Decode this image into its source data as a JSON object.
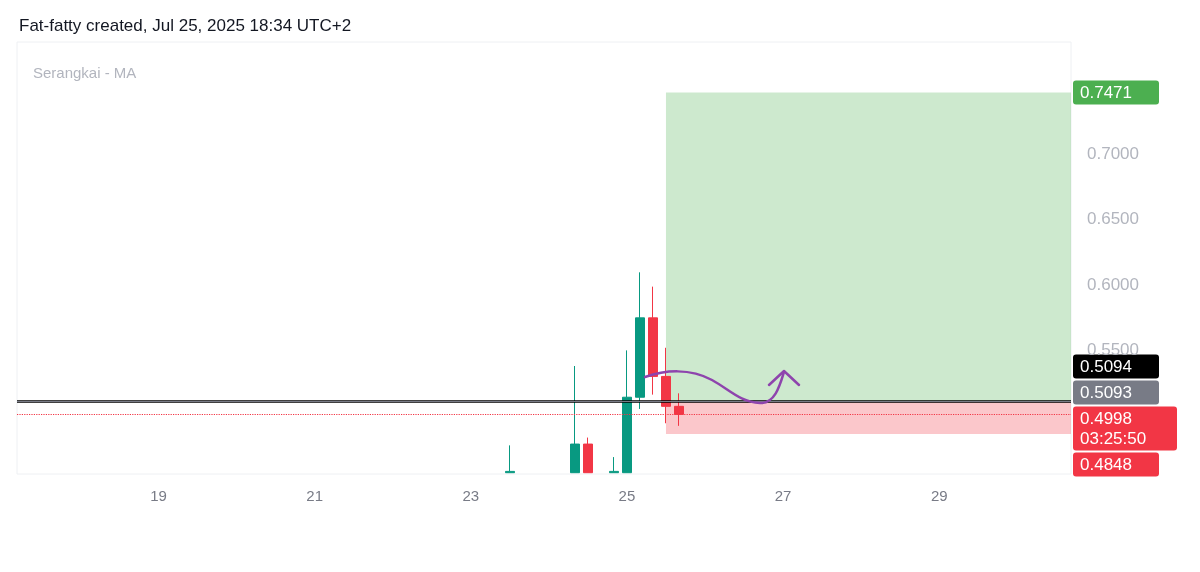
{
  "chart_data": {
    "type": "candlestick",
    "title": "Fat-fatty created, Jul 25, 2025 18:34 UTC+2",
    "subtitle": "Serangkai - MA",
    "x": [
      "2025-07-23T12:00",
      "2025-07-24T08:00",
      "2025-07-24T12:00",
      "2025-07-24T20:00",
      "2025-07-25T00:00",
      "2025-07-25T04:00",
      "2025-07-25T08:00",
      "2025-07-25T12:00",
      "2025-07-25T16:00"
    ],
    "ohlc": [
      [
        0.455,
        0.476,
        0.455,
        0.456
      ],
      [
        0.455,
        0.537,
        0.455,
        0.477
      ],
      [
        0.477,
        0.482,
        0.455,
        0.455
      ],
      [
        0.455,
        0.467,
        0.455,
        0.456
      ],
      [
        0.455,
        0.549,
        0.455,
        0.513
      ],
      [
        0.513,
        0.609,
        0.504,
        0.574
      ],
      [
        0.574,
        0.598,
        0.515,
        0.529
      ],
      [
        0.529,
        0.551,
        0.493,
        0.506
      ],
      [
        0.506,
        0.516,
        0.491,
        0.4998
      ]
    ],
    "colors": [
      "#089981",
      "#089981",
      "#f23645",
      "#089981",
      "#089981",
      "#089981",
      "#f23645",
      "#f23645",
      "#f23645"
    ],
    "xlim": [
      "2025-07-17T04:30",
      "2025-07-30T16:30"
    ],
    "xticks": [
      {
        "value": "2025-07-19",
        "label": "19"
      },
      {
        "value": "2025-07-21",
        "label": "21"
      },
      {
        "value": "2025-07-23",
        "label": "23"
      },
      {
        "value": "2025-07-25",
        "label": "25"
      },
      {
        "value": "2025-07-27",
        "label": "27"
      },
      {
        "value": "2025-07-29",
        "label": "29"
      }
    ],
    "ylim": [
      0.454,
      0.786
    ],
    "yticks": [
      {
        "value": 0.55,
        "label": "0.5500"
      },
      {
        "value": 0.6,
        "label": "0.6000"
      },
      {
        "value": 0.65,
        "label": "0.6500"
      },
      {
        "value": 0.7,
        "label": "0.7000"
      }
    ],
    "ref_lines": [
      {
        "axis": "y",
        "value": 0.5094,
        "label": "0.5094",
        "color": "#000000",
        "line_style": "solid"
      },
      {
        "axis": "y",
        "value": 0.5093,
        "label": "0.5093",
        "color": "#787b86",
        "line_style": "solid"
      },
      {
        "axis": "y",
        "value": 0.4998,
        "label": "0.4998\n03:25:50",
        "color": "#f23645",
        "line_style": "dotted"
      }
    ],
    "bands": [
      {
        "axis": "y",
        "from": 0.5093,
        "to": 0.7471,
        "label": "0.7471",
        "color": "#4caf50"
      },
      {
        "axis": "y",
        "from": 0.4848,
        "to": 0.5093,
        "label": "0.4848",
        "color": "#f23645"
      }
    ],
    "grid": false
  }
}
